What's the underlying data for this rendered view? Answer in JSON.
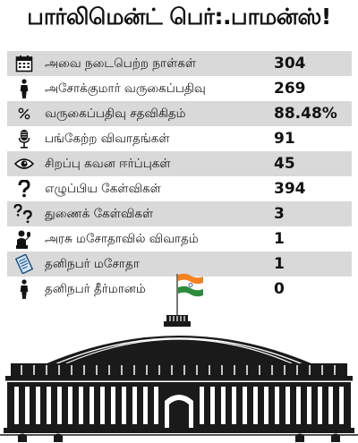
{
  "title": "பார்லிமென்ட் பெர்:.பாமன்ஸ்!",
  "stats": [
    {
      "label": "அவை நடைபெற்ற நாள்கள்",
      "value": "304",
      "icon": "calendar-icon"
    },
    {
      "label": "அசோக்குமார் வருகைப்பதிவு",
      "value": "269",
      "icon": "person-icon"
    },
    {
      "label": "வருகைப்பதிவு சதவிகிதம்",
      "value": "88.48%",
      "icon": "percent-icon"
    },
    {
      "label": "பங்கேற்ற விவாதங்கள்",
      "value": "91",
      "icon": "microphone-icon"
    },
    {
      "label": "சிறப்பு கவன ஈர்ப்புகள்",
      "value": "45",
      "icon": "eye-icon"
    },
    {
      "label": "எழுப்பிய கேள்விகள்",
      "value": "394",
      "icon": "question-icon"
    },
    {
      "label": "துணைக் கேள்விகள்",
      "value": "3",
      "icon": "double-question-icon"
    },
    {
      "label": "அரசு மசோதாவில் விவாதம்",
      "value": "1",
      "icon": "speaker-icon"
    },
    {
      "label": "தனிநபர் மசோதா",
      "value": "1",
      "icon": "document-icon"
    },
    {
      "label": "தனிநபர் தீர்மானம்",
      "value": "0",
      "icon": "person-icon"
    }
  ],
  "colors": {
    "row_alt": "#d9d9d9",
    "flag_saffron": "#f58220",
    "flag_green": "#2e8b3e",
    "building": "#1a1a1a"
  }
}
